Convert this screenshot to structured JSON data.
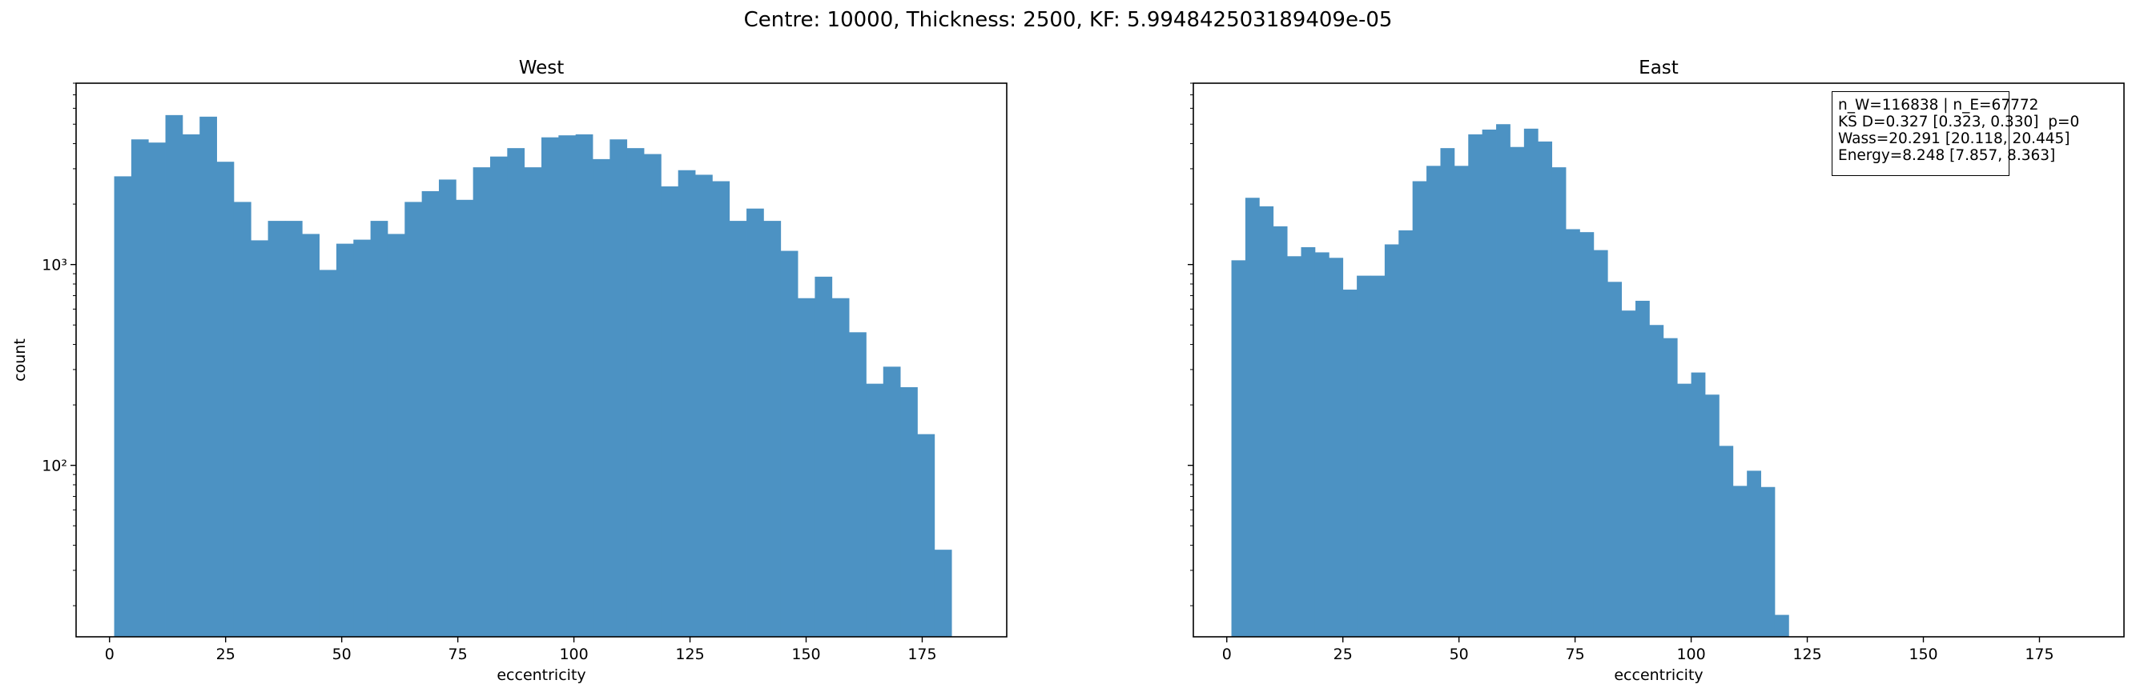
{
  "suptitle": "Centre: 10000, Thickness: 2500, KF: 5.994842503189409e-05",
  "bar_color": "#4c92c3",
  "chart_data": [
    {
      "type": "bar",
      "title": "West",
      "xlabel": "eccentricity",
      "ylabel": "count",
      "yscale": "log",
      "xlim": [
        -7.2,
        193.2
      ],
      "ylim": [
        14,
        8000
      ],
      "xticks": [
        0,
        25,
        50,
        75,
        100,
        125,
        150,
        175
      ],
      "yticks": [
        {
          "value": 100,
          "label": "10²"
        },
        {
          "value": 1000,
          "label": "10³"
        }
      ],
      "bin_start": 1.0,
      "bin_width": 3.68,
      "values": [
        2750,
        4200,
        4050,
        5550,
        4450,
        5450,
        3250,
        2050,
        1320,
        1650,
        1650,
        1420,
        940,
        1270,
        1330,
        1650,
        1420,
        2050,
        2320,
        2650,
        2100,
        3050,
        3450,
        3800,
        3050,
        4300,
        4400,
        4450,
        3350,
        4200,
        3800,
        3550,
        2450,
        2950,
        2800,
        2600,
        1650,
        1900,
        1650,
        1170,
        680,
        870,
        680,
        460,
        255,
        310,
        245,
        143,
        38
      ]
    },
    {
      "type": "bar",
      "title": "East",
      "xlabel": "eccentricity",
      "ylabel": "",
      "yscale": "log",
      "xlim": [
        -7.2,
        193.2
      ],
      "ylim": [
        14,
        8000
      ],
      "xticks": [
        0,
        25,
        50,
        75,
        100,
        125,
        150,
        175
      ],
      "yticks": [
        {
          "value": 100,
          "label": ""
        },
        {
          "value": 1000,
          "label": ""
        }
      ],
      "bin_start": 1.0,
      "bin_width": 3.0,
      "values": [
        1050,
        2150,
        1950,
        1550,
        1100,
        1220,
        1150,
        1080,
        750,
        880,
        880,
        1260,
        1480,
        2600,
        3100,
        3800,
        3100,
        4450,
        4700,
        5000,
        3850,
        4750,
        4100,
        3050,
        1500,
        1450,
        1180,
        820,
        590,
        660,
        500,
        430,
        255,
        290,
        225,
        125,
        79,
        94,
        78,
        18
      ]
    }
  ],
  "stats_box": {
    "line1": "n_W=116838 | n_E=67772",
    "line2": "KS D=0.327 [0.323, 0.330]  p=0",
    "line3": "Wass=20.291 [20.118, 20.445]",
    "line4": "Energy=8.248 [7.857, 8.363]"
  }
}
